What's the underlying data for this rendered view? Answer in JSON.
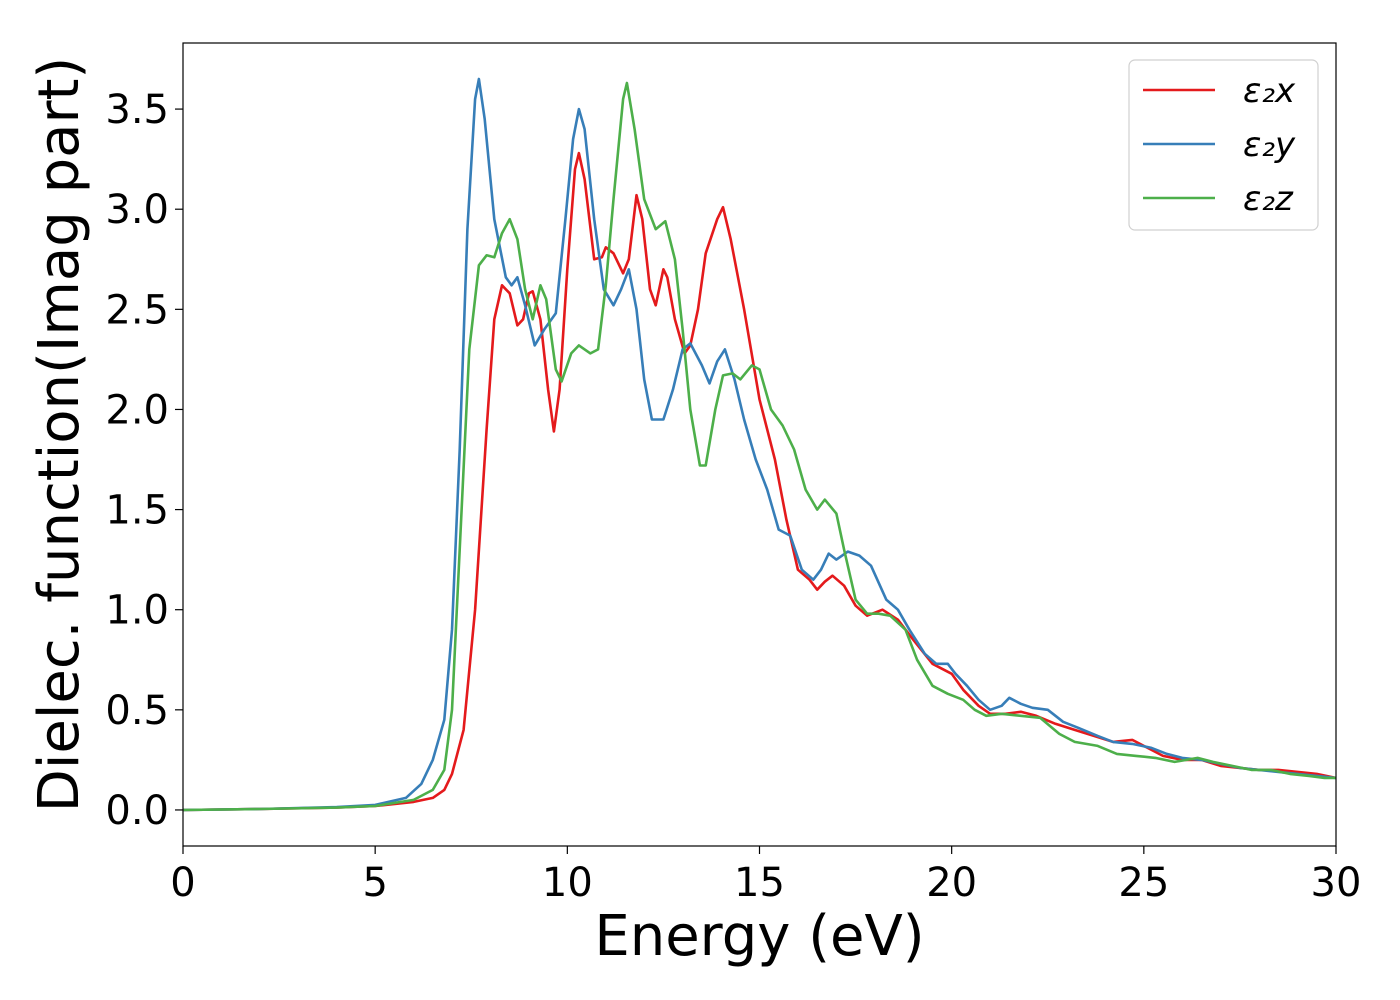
{
  "chart_data": {
    "type": "line",
    "title": "",
    "xlabel": "Energy (eV)",
    "ylabel": "Dielec. function(Imag part)",
    "xlim": [
      0,
      30
    ],
    "ylim": [
      -0.18,
      3.83
    ],
    "xticks": [
      0,
      5,
      10,
      15,
      20,
      25,
      30
    ],
    "yticks": [
      0.0,
      0.5,
      1.0,
      1.5,
      2.0,
      2.5,
      3.0,
      3.5
    ],
    "xtick_labels": [
      "0",
      "5",
      "10",
      "15",
      "20",
      "25",
      "30"
    ],
    "ytick_labels": [
      "0.0",
      "0.5",
      "1.0",
      "1.5",
      "2.0",
      "2.5",
      "3.0",
      "3.5"
    ],
    "grid": false,
    "legend_position": "top-right",
    "series": [
      {
        "name": "ε₂x",
        "color": "#e41a1c",
        "points": [
          [
            0,
            0
          ],
          [
            2,
            0.005
          ],
          [
            4,
            0.012
          ],
          [
            5,
            0.02
          ],
          [
            6,
            0.04
          ],
          [
            6.5,
            0.06
          ],
          [
            6.8,
            0.1
          ],
          [
            7,
            0.18
          ],
          [
            7.3,
            0.4
          ],
          [
            7.6,
            1.0
          ],
          [
            7.9,
            1.9
          ],
          [
            8.1,
            2.45
          ],
          [
            8.3,
            2.62
          ],
          [
            8.5,
            2.58
          ],
          [
            8.7,
            2.42
          ],
          [
            8.85,
            2.45
          ],
          [
            9.0,
            2.58
          ],
          [
            9.1,
            2.59
          ],
          [
            9.3,
            2.45
          ],
          [
            9.5,
            2.1
          ],
          [
            9.65,
            1.89
          ],
          [
            9.8,
            2.1
          ],
          [
            10.0,
            2.7
          ],
          [
            10.2,
            3.2
          ],
          [
            10.3,
            3.28
          ],
          [
            10.45,
            3.15
          ],
          [
            10.7,
            2.75
          ],
          [
            10.9,
            2.76
          ],
          [
            11.0,
            2.81
          ],
          [
            11.2,
            2.78
          ],
          [
            11.45,
            2.68
          ],
          [
            11.6,
            2.75
          ],
          [
            11.8,
            3.07
          ],
          [
            11.95,
            2.95
          ],
          [
            12.15,
            2.6
          ],
          [
            12.3,
            2.52
          ],
          [
            12.5,
            2.7
          ],
          [
            12.6,
            2.66
          ],
          [
            12.8,
            2.45
          ],
          [
            13.05,
            2.28
          ],
          [
            13.2,
            2.32
          ],
          [
            13.4,
            2.5
          ],
          [
            13.6,
            2.78
          ],
          [
            13.9,
            2.95
          ],
          [
            14.05,
            3.01
          ],
          [
            14.25,
            2.85
          ],
          [
            14.6,
            2.5
          ],
          [
            15.0,
            2.05
          ],
          [
            15.4,
            1.75
          ],
          [
            15.7,
            1.45
          ],
          [
            16.0,
            1.2
          ],
          [
            16.3,
            1.15
          ],
          [
            16.5,
            1.1
          ],
          [
            16.7,
            1.14
          ],
          [
            16.9,
            1.17
          ],
          [
            17.2,
            1.12
          ],
          [
            17.5,
            1.02
          ],
          [
            17.8,
            0.97
          ],
          [
            18.2,
            1.0
          ],
          [
            18.6,
            0.95
          ],
          [
            19.0,
            0.85
          ],
          [
            19.5,
            0.73
          ],
          [
            20.0,
            0.68
          ],
          [
            20.3,
            0.6
          ],
          [
            20.7,
            0.52
          ],
          [
            21.0,
            0.48
          ],
          [
            21.4,
            0.48
          ],
          [
            21.8,
            0.49
          ],
          [
            22.2,
            0.47
          ],
          [
            22.7,
            0.43
          ],
          [
            23.2,
            0.4
          ],
          [
            23.7,
            0.37
          ],
          [
            24.2,
            0.34
          ],
          [
            24.7,
            0.35
          ],
          [
            25.0,
            0.32
          ],
          [
            25.5,
            0.27
          ],
          [
            26.0,
            0.25
          ],
          [
            26.5,
            0.25
          ],
          [
            27.0,
            0.22
          ],
          [
            27.5,
            0.21
          ],
          [
            28.0,
            0.2
          ],
          [
            28.5,
            0.2
          ],
          [
            29.0,
            0.19
          ],
          [
            29.5,
            0.18
          ],
          [
            30.0,
            0.16
          ]
        ]
      },
      {
        "name": "ε₂y",
        "color": "#377eb8",
        "points": [
          [
            0,
            0
          ],
          [
            2,
            0.005
          ],
          [
            4,
            0.015
          ],
          [
            5,
            0.025
          ],
          [
            5.8,
            0.06
          ],
          [
            6.2,
            0.13
          ],
          [
            6.5,
            0.25
          ],
          [
            6.8,
            0.45
          ],
          [
            7.0,
            0.9
          ],
          [
            7.2,
            1.8
          ],
          [
            7.4,
            2.9
          ],
          [
            7.6,
            3.55
          ],
          [
            7.7,
            3.65
          ],
          [
            7.85,
            3.45
          ],
          [
            8.1,
            2.95
          ],
          [
            8.4,
            2.66
          ],
          [
            8.55,
            2.62
          ],
          [
            8.7,
            2.66
          ],
          [
            8.9,
            2.52
          ],
          [
            9.15,
            2.32
          ],
          [
            9.4,
            2.4
          ],
          [
            9.7,
            2.48
          ],
          [
            9.95,
            2.95
          ],
          [
            10.15,
            3.35
          ],
          [
            10.3,
            3.5
          ],
          [
            10.45,
            3.4
          ],
          [
            10.7,
            2.95
          ],
          [
            10.95,
            2.6
          ],
          [
            11.2,
            2.52
          ],
          [
            11.4,
            2.6
          ],
          [
            11.6,
            2.7
          ],
          [
            11.8,
            2.5
          ],
          [
            12.0,
            2.15
          ],
          [
            12.2,
            1.95
          ],
          [
            12.5,
            1.95
          ],
          [
            12.75,
            2.1
          ],
          [
            13.0,
            2.3
          ],
          [
            13.2,
            2.33
          ],
          [
            13.5,
            2.22
          ],
          [
            13.7,
            2.13
          ],
          [
            13.9,
            2.24
          ],
          [
            14.1,
            2.3
          ],
          [
            14.35,
            2.15
          ],
          [
            14.6,
            1.95
          ],
          [
            14.9,
            1.75
          ],
          [
            15.2,
            1.6
          ],
          [
            15.5,
            1.4
          ],
          [
            15.8,
            1.37
          ],
          [
            16.1,
            1.2
          ],
          [
            16.4,
            1.15
          ],
          [
            16.6,
            1.2
          ],
          [
            16.8,
            1.28
          ],
          [
            17.0,
            1.25
          ],
          [
            17.3,
            1.29
          ],
          [
            17.6,
            1.27
          ],
          [
            17.9,
            1.22
          ],
          [
            18.3,
            1.05
          ],
          [
            18.6,
            1.0
          ],
          [
            18.9,
            0.9
          ],
          [
            19.3,
            0.78
          ],
          [
            19.6,
            0.73
          ],
          [
            19.9,
            0.73
          ],
          [
            20.1,
            0.68
          ],
          [
            20.4,
            0.62
          ],
          [
            20.7,
            0.55
          ],
          [
            21.0,
            0.5
          ],
          [
            21.3,
            0.52
          ],
          [
            21.5,
            0.56
          ],
          [
            21.8,
            0.53
          ],
          [
            22.1,
            0.51
          ],
          [
            22.5,
            0.5
          ],
          [
            22.9,
            0.44
          ],
          [
            23.3,
            0.41
          ],
          [
            23.8,
            0.37
          ],
          [
            24.2,
            0.34
          ],
          [
            24.7,
            0.33
          ],
          [
            25.2,
            0.31
          ],
          [
            25.6,
            0.28
          ],
          [
            26.0,
            0.26
          ],
          [
            26.5,
            0.25
          ],
          [
            27.0,
            0.23
          ],
          [
            27.5,
            0.21
          ],
          [
            28.0,
            0.2
          ],
          [
            28.5,
            0.19
          ],
          [
            29.0,
            0.18
          ],
          [
            29.5,
            0.17
          ],
          [
            30.0,
            0.16
          ]
        ]
      },
      {
        "name": "ε₂z",
        "color": "#4daf4a",
        "points": [
          [
            0,
            0
          ],
          [
            2,
            0.005
          ],
          [
            4,
            0.012
          ],
          [
            5,
            0.02
          ],
          [
            6,
            0.05
          ],
          [
            6.5,
            0.1
          ],
          [
            6.8,
            0.2
          ],
          [
            7.0,
            0.5
          ],
          [
            7.2,
            1.3
          ],
          [
            7.45,
            2.3
          ],
          [
            7.7,
            2.72
          ],
          [
            7.9,
            2.77
          ],
          [
            8.1,
            2.76
          ],
          [
            8.3,
            2.88
          ],
          [
            8.5,
            2.95
          ],
          [
            8.7,
            2.85
          ],
          [
            8.9,
            2.6
          ],
          [
            9.1,
            2.45
          ],
          [
            9.3,
            2.62
          ],
          [
            9.45,
            2.55
          ],
          [
            9.7,
            2.2
          ],
          [
            9.85,
            2.14
          ],
          [
            10.1,
            2.28
          ],
          [
            10.3,
            2.32
          ],
          [
            10.6,
            2.28
          ],
          [
            10.8,
            2.3
          ],
          [
            11.0,
            2.62
          ],
          [
            11.2,
            3.05
          ],
          [
            11.45,
            3.55
          ],
          [
            11.55,
            3.63
          ],
          [
            11.75,
            3.4
          ],
          [
            12.0,
            3.05
          ],
          [
            12.3,
            2.9
          ],
          [
            12.55,
            2.94
          ],
          [
            12.8,
            2.75
          ],
          [
            13.0,
            2.4
          ],
          [
            13.2,
            2.0
          ],
          [
            13.45,
            1.72
          ],
          [
            13.6,
            1.72
          ],
          [
            13.85,
            2.0
          ],
          [
            14.05,
            2.17
          ],
          [
            14.3,
            2.18
          ],
          [
            14.5,
            2.15
          ],
          [
            14.8,
            2.22
          ],
          [
            15.0,
            2.2
          ],
          [
            15.3,
            2.0
          ],
          [
            15.6,
            1.92
          ],
          [
            15.9,
            1.8
          ],
          [
            16.2,
            1.6
          ],
          [
            16.5,
            1.5
          ],
          [
            16.7,
            1.55
          ],
          [
            17.0,
            1.48
          ],
          [
            17.2,
            1.3
          ],
          [
            17.5,
            1.05
          ],
          [
            17.8,
            0.98
          ],
          [
            18.1,
            0.98
          ],
          [
            18.4,
            0.97
          ],
          [
            18.8,
            0.9
          ],
          [
            19.1,
            0.75
          ],
          [
            19.5,
            0.62
          ],
          [
            19.9,
            0.58
          ],
          [
            20.3,
            0.55
          ],
          [
            20.6,
            0.5
          ],
          [
            20.9,
            0.47
          ],
          [
            21.3,
            0.48
          ],
          [
            21.8,
            0.47
          ],
          [
            22.3,
            0.46
          ],
          [
            22.8,
            0.38
          ],
          [
            23.2,
            0.34
          ],
          [
            23.8,
            0.32
          ],
          [
            24.3,
            0.28
          ],
          [
            24.8,
            0.27
          ],
          [
            25.3,
            0.26
          ],
          [
            25.8,
            0.24
          ],
          [
            26.4,
            0.26
          ],
          [
            26.8,
            0.24
          ],
          [
            27.3,
            0.22
          ],
          [
            27.8,
            0.2
          ],
          [
            28.3,
            0.2
          ],
          [
            28.8,
            0.18
          ],
          [
            29.3,
            0.17
          ],
          [
            29.7,
            0.16
          ],
          [
            30.0,
            0.16
          ]
        ]
      }
    ]
  }
}
